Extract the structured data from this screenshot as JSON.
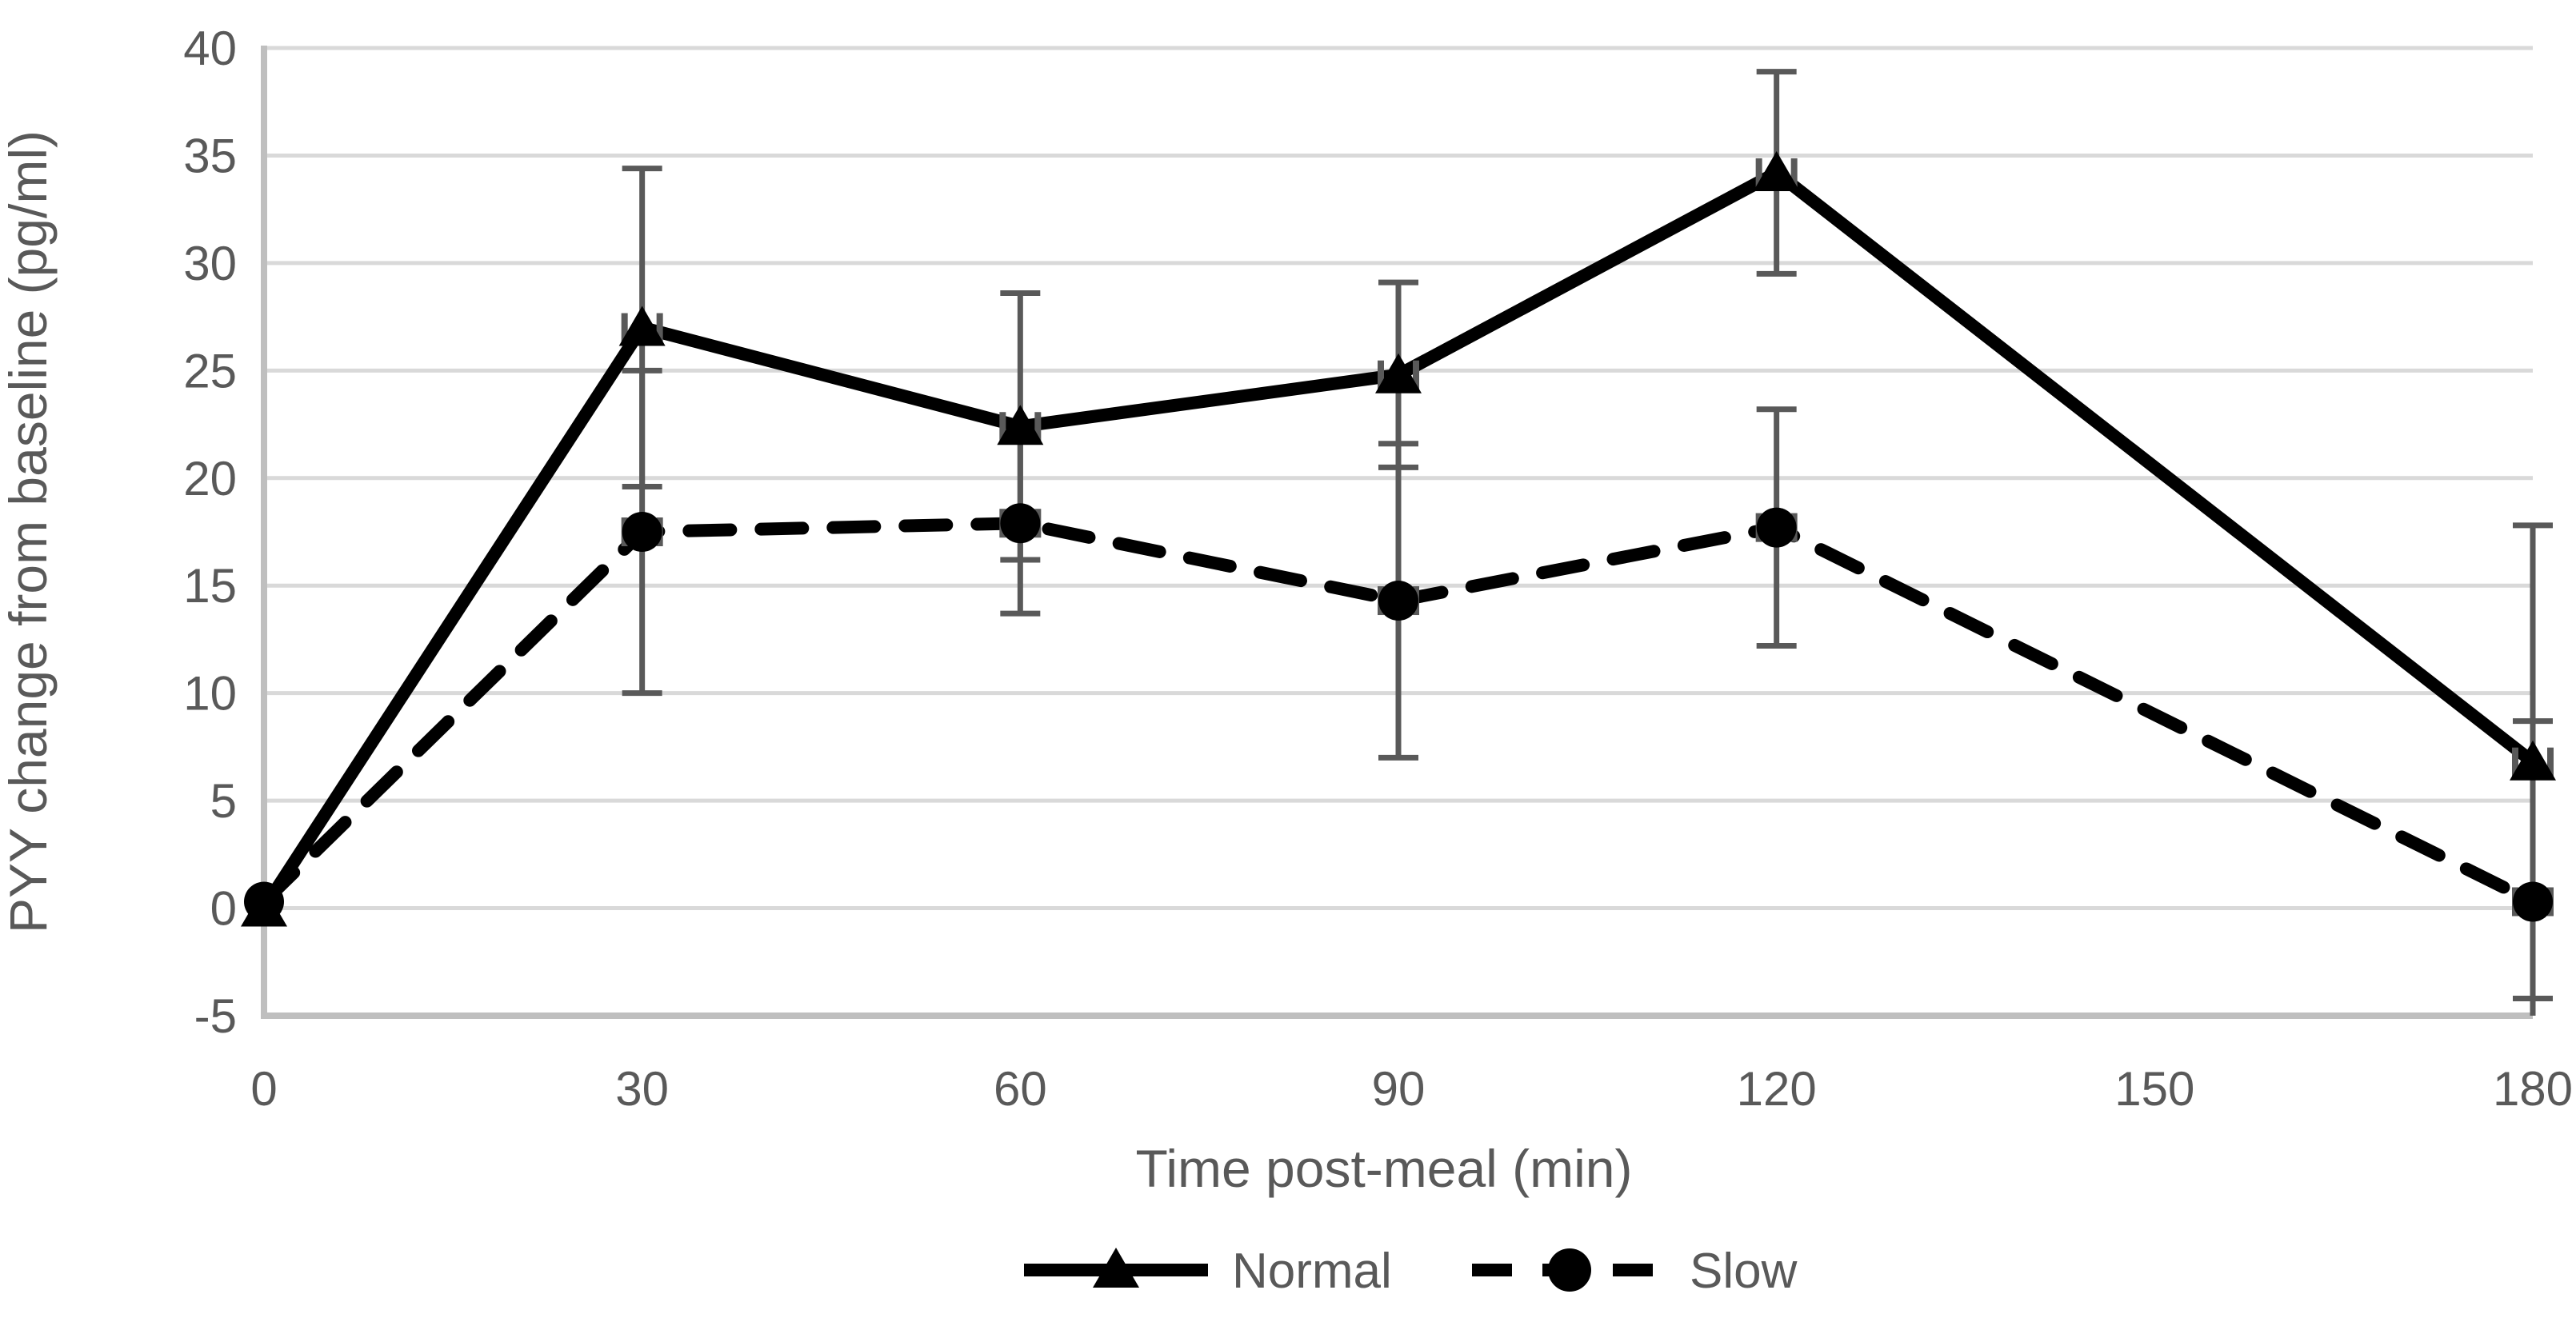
{
  "page": {
    "background": "#ffffff"
  },
  "chart_data": {
    "type": "line",
    "title": "",
    "xlabel": "Time post-meal (min)",
    "ylabel": "PYY change from baseline (pg/ml)",
    "xlim": [
      0,
      180
    ],
    "ylim": [
      -5,
      40
    ],
    "x_ticks": [
      0,
      30,
      60,
      90,
      120,
      150,
      180
    ],
    "y_tick_step": 5,
    "grid": true,
    "legend_position": "bottom-center",
    "x": [
      0,
      30,
      60,
      90,
      120,
      180
    ],
    "series": [
      {
        "name": "Normal",
        "line_style": "solid",
        "marker": "triangle",
        "values": [
          0,
          27,
          22.4,
          24.8,
          34.2,
          6.8
        ],
        "yerr": [
          0,
          7.4,
          6.2,
          4.3,
          4.7,
          11
        ]
      },
      {
        "name": "Slow",
        "line_style": "dashed",
        "marker": "circle",
        "values": [
          0.3,
          17.5,
          17.9,
          14.3,
          17.7,
          0.3
        ],
        "yerr": [
          0,
          7.5,
          4.2,
          7.3,
          5.5,
          8.4
        ]
      }
    ],
    "colors": {
      "series_line": "#000000",
      "error_bar": "#595959",
      "text": "#595959",
      "gridline": "#d9d9d9",
      "axis_line": "#bfbfbf"
    }
  }
}
